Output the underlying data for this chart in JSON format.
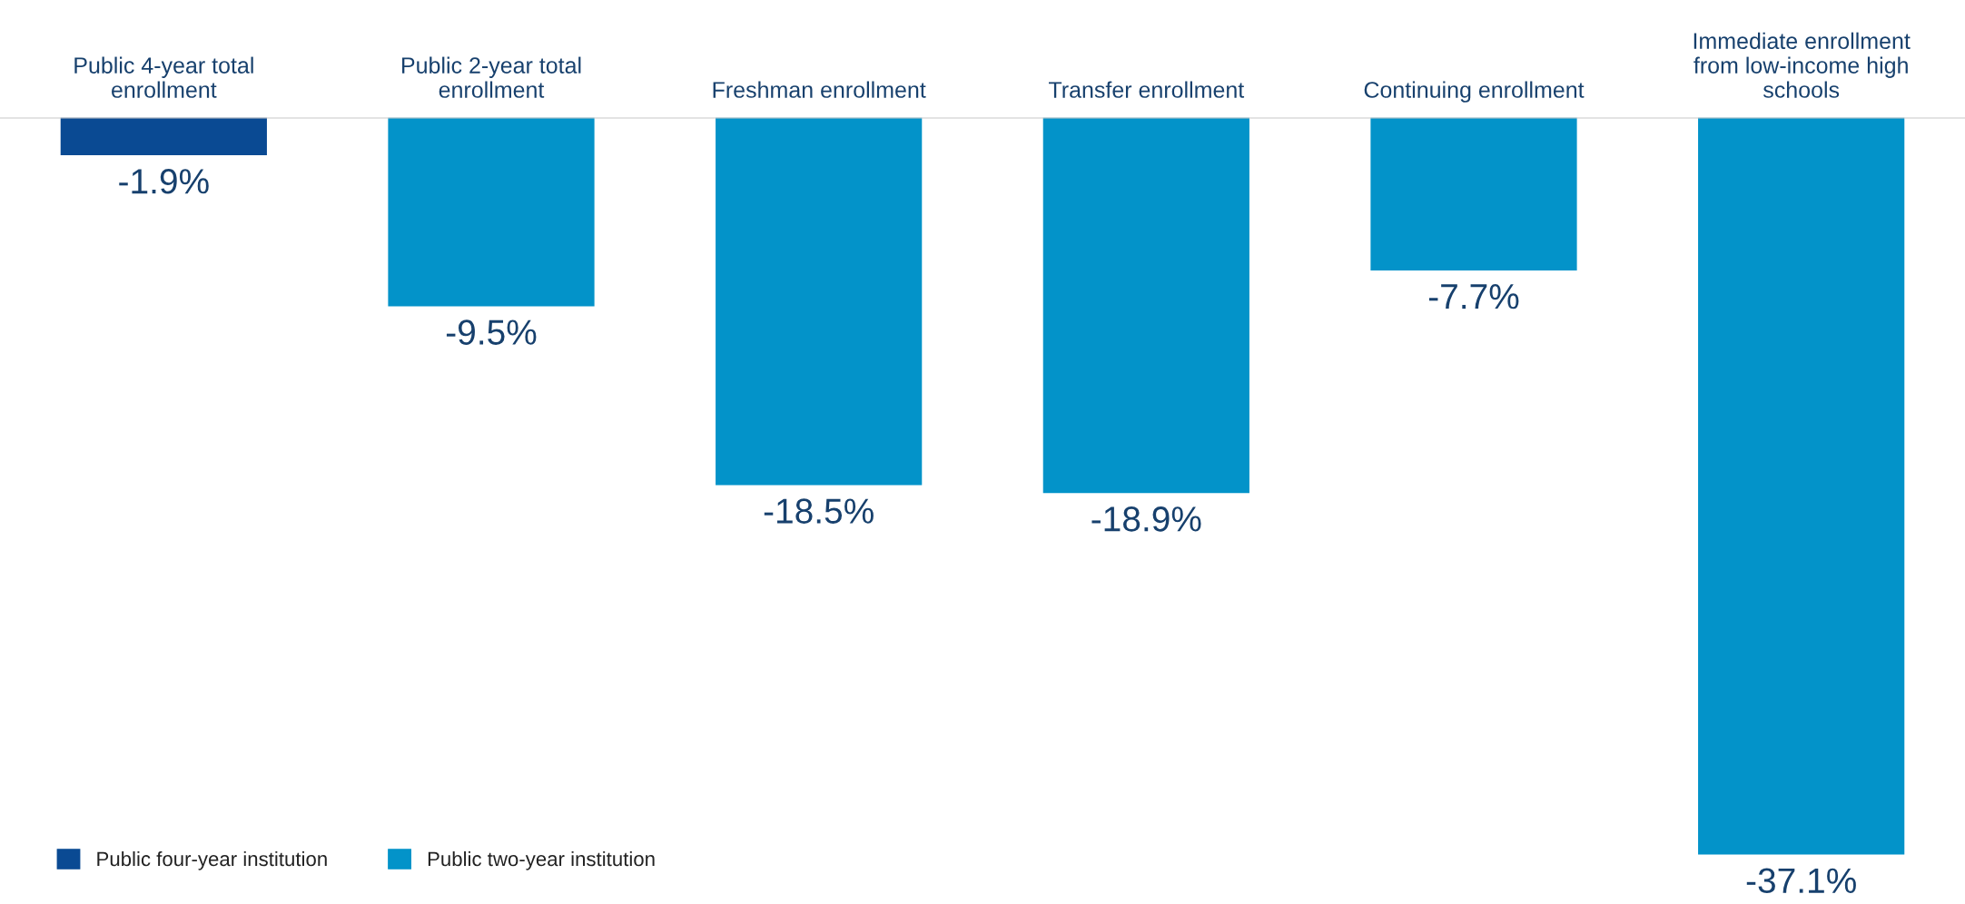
{
  "chart_data": {
    "type": "bar",
    "categories": [
      "Public 4-year total\nenrollment",
      "Public 2-year total\nenrollment",
      "Freshman enrollment",
      "Transfer enrollment",
      "Continuing enrollment",
      "Immediate enrollment\nfrom low-income high\nschools"
    ],
    "series": [
      {
        "name": "Public four-year institution",
        "color": "#0a4a93",
        "values": [
          -1.9,
          null,
          null,
          null,
          null,
          null
        ],
        "value_labels": [
          "-1.9%",
          null,
          null,
          null,
          null,
          null
        ]
      },
      {
        "name": "Public two-year institution",
        "color": "#0393c9",
        "values": [
          null,
          -9.5,
          -18.5,
          -18.9,
          -7.7,
          -37.1
        ],
        "value_labels": [
          null,
          "-9.5%",
          "-18.5%",
          "-18.9%",
          "-7.7%",
          "-37.1%"
        ]
      }
    ],
    "tick_labels": "x",
    "grid": false,
    "legend": "bottom left"
  }
}
